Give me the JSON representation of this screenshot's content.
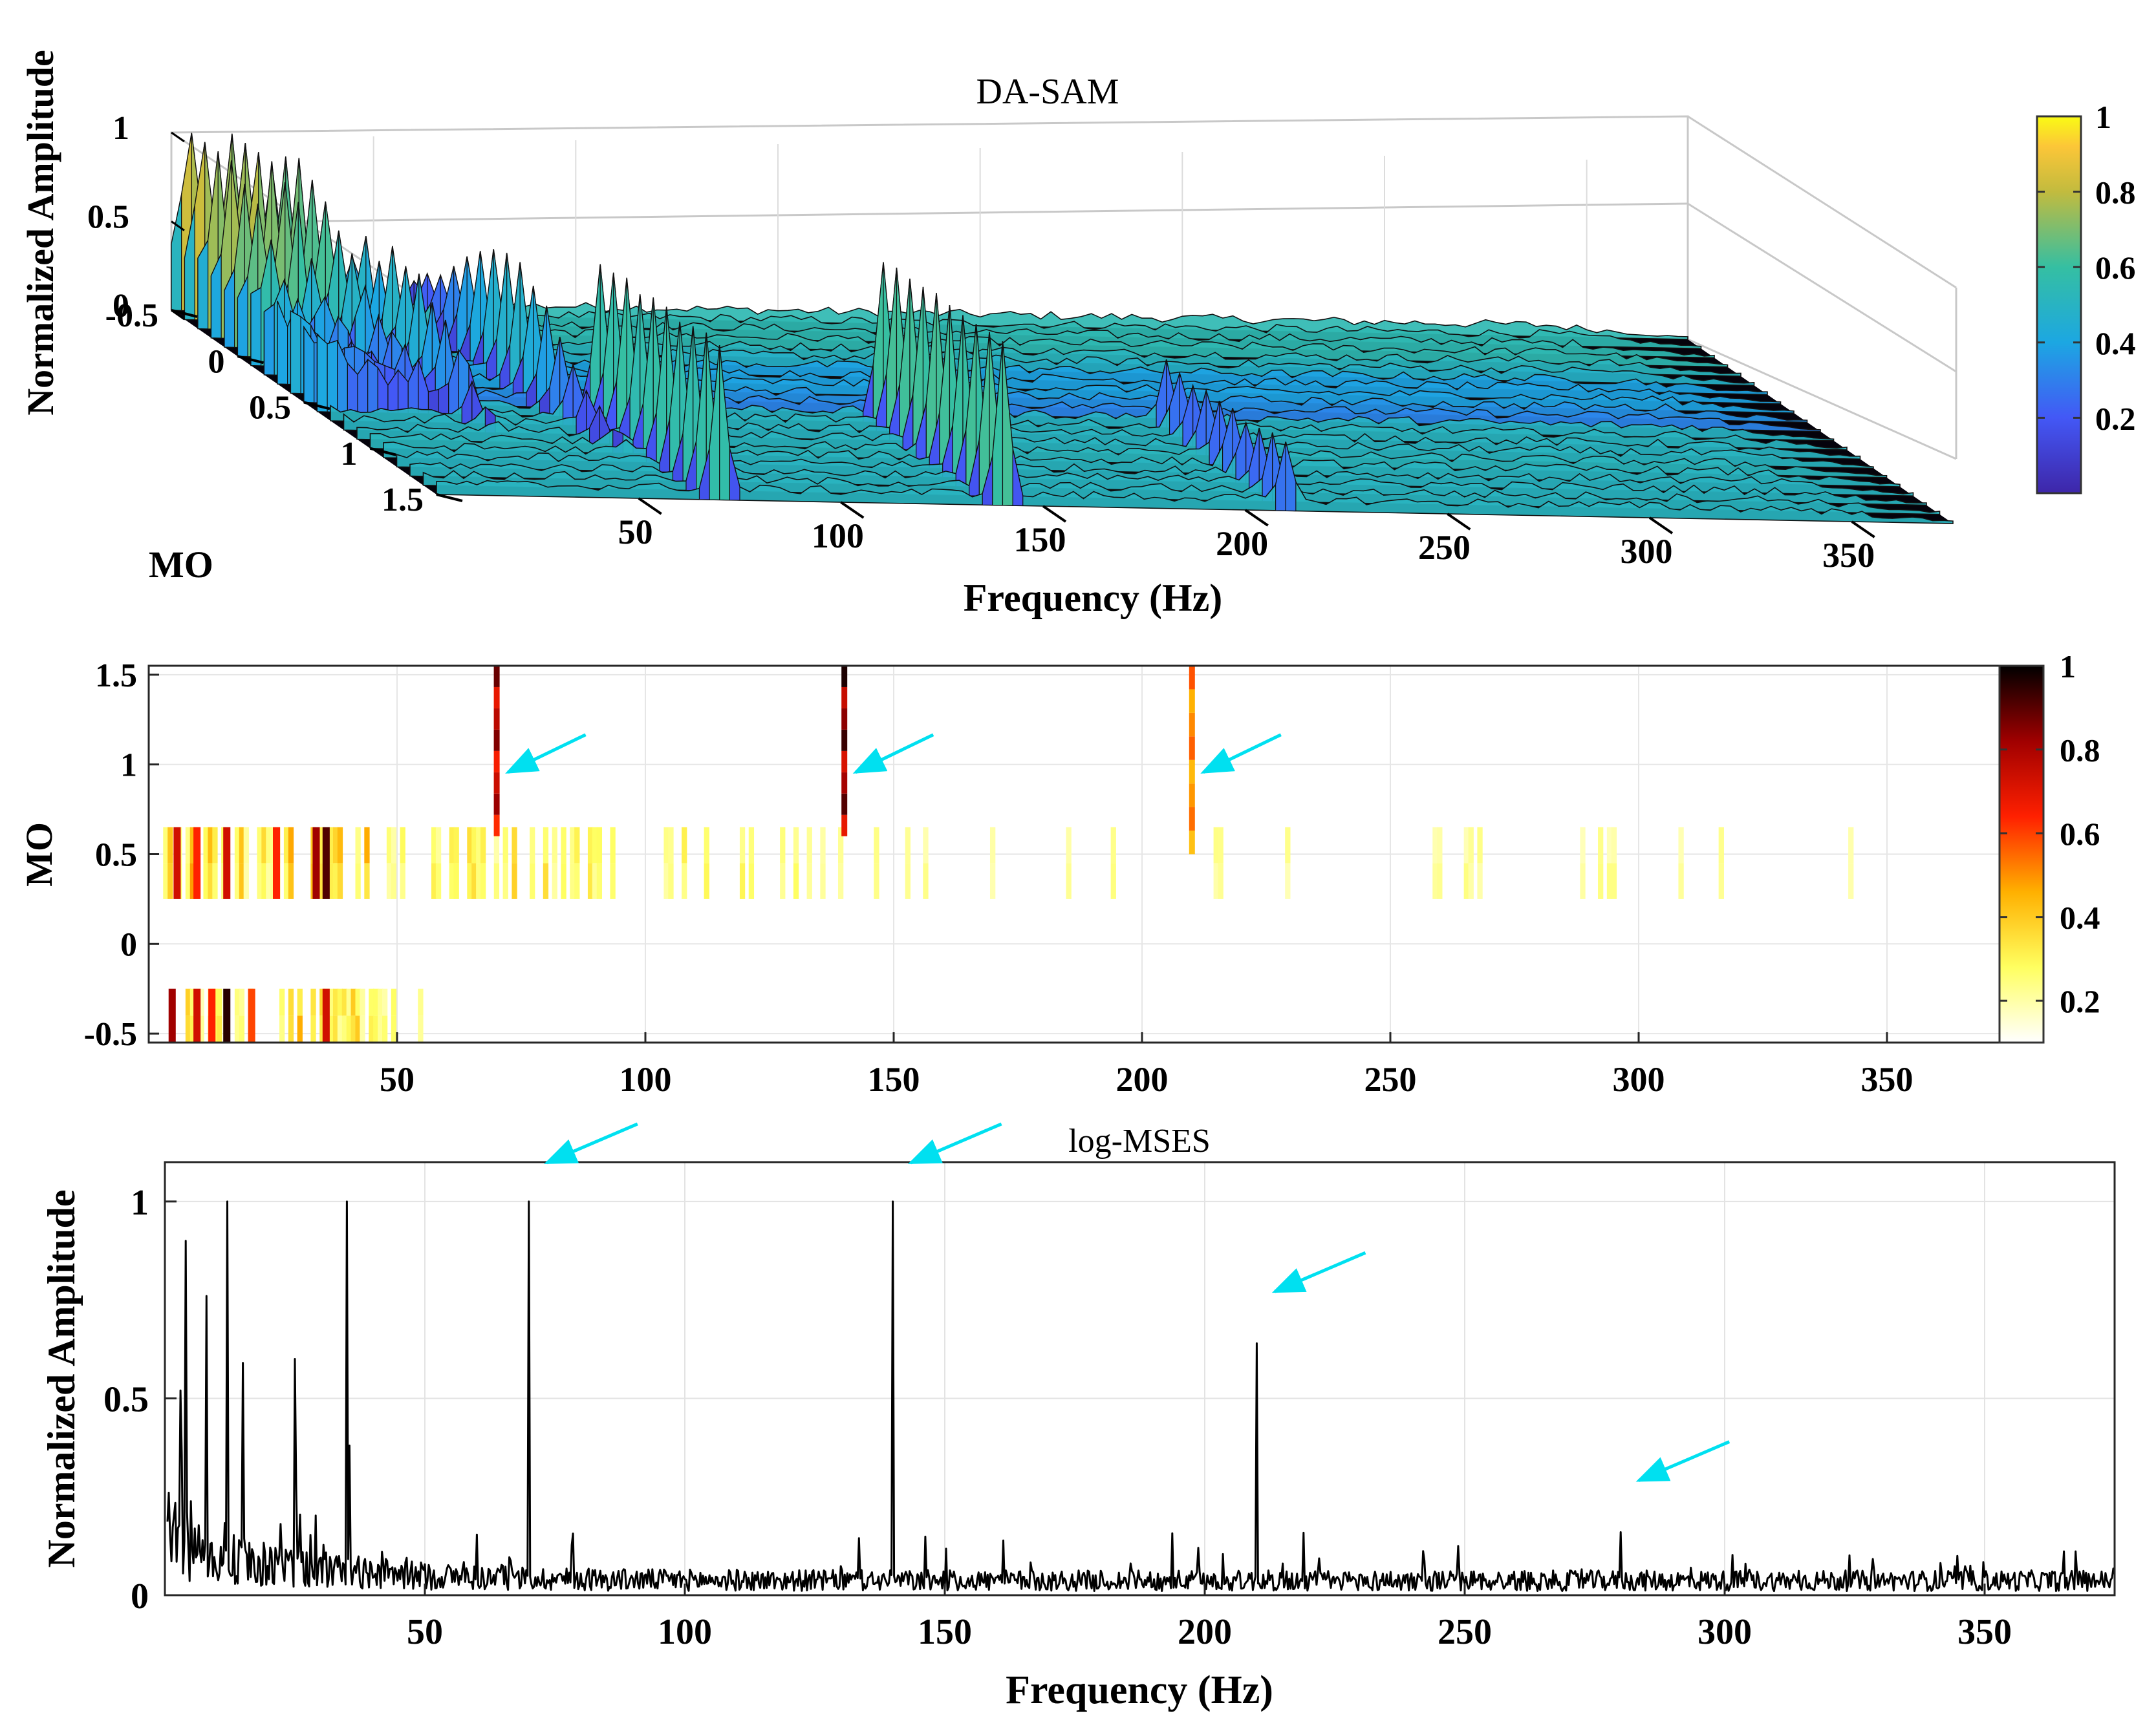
{
  "chart_data": [
    {
      "type": "surface",
      "title": "DA-SAM",
      "xlabel": "Frequency (Hz)",
      "ylabel": "MO",
      "zlabel": "Normalized Amplitude",
      "xlim": [
        0,
        375
      ],
      "ylim": [
        -0.5,
        1.5
      ],
      "zlim": [
        0,
        1
      ],
      "x_ticks": [
        "50",
        "100",
        "150",
        "200",
        "250",
        "300",
        "350"
      ],
      "y_ticks": [
        "-0.5",
        "0",
        "0.5",
        "1",
        "1.5"
      ],
      "z_ticks": [
        "0",
        "0.5",
        "1"
      ],
      "colorbar": {
        "colormap": "parula",
        "range": [
          0,
          1
        ],
        "ticks": [
          "0.2",
          "0.4",
          "0.6",
          "0.8",
          "1"
        ]
      },
      "peaks": [
        {
          "freq": 5,
          "mo": -0.4,
          "amp": 0.85
        },
        {
          "freq": 15,
          "mo": -0.4,
          "amp": 1.0
        },
        {
          "freq": 25,
          "mo": -0.3,
          "amp": 0.75
        },
        {
          "freq": 35,
          "mo": 0.1,
          "amp": 0.5
        },
        {
          "freq": 60,
          "mo": 0.2,
          "amp": 0.65
        },
        {
          "freq": 70,
          "mo": 1.0,
          "amp": 0.8
        },
        {
          "freq": 140,
          "mo": 1.0,
          "amp": 0.85
        },
        {
          "freq": 210,
          "mo": 1.0,
          "amp": 0.3
        }
      ],
      "grid": true
    },
    {
      "type": "heatmap",
      "xlabel": "",
      "ylabel": "MO",
      "xlim": [
        0,
        375
      ],
      "ylim": [
        -0.55,
        1.55
      ],
      "x_ticks": [
        "50",
        "100",
        "150",
        "200",
        "250",
        "300",
        "350"
      ],
      "y_ticks": [
        "-0.5",
        "0",
        "0.5",
        "1",
        "1.5"
      ],
      "colorbar": {
        "colormap": "hot-reversed",
        "range": [
          0.1,
          1
        ],
        "ticks": [
          "0.2",
          "0.4",
          "0.6",
          "0.8",
          "1"
        ]
      },
      "lines": [
        {
          "freq": 70,
          "mo_from": 0.6,
          "mo_to": 1.55,
          "value": 0.9
        },
        {
          "freq": 140,
          "mo_from": 0.6,
          "mo_to": 1.55,
          "value": 1.0
        },
        {
          "freq": 210,
          "mo_from": 0.5,
          "mo_to": 1.55,
          "value": 0.55
        }
      ],
      "bands": [
        {
          "mo_from": 0.25,
          "mo_to": 0.65
        },
        {
          "mo_from": -0.55,
          "mo_to": -0.25
        }
      ],
      "strong_cells": [
        {
          "freq": 5,
          "mo": 0.45,
          "value": 0.7
        },
        {
          "freq": 9,
          "mo": 0.45,
          "value": 0.6
        },
        {
          "freq": 15,
          "mo": 0.45,
          "value": 0.7
        },
        {
          "freq": 25,
          "mo": 0.45,
          "value": 0.6
        },
        {
          "freq": 33,
          "mo": 0.45,
          "value": 0.8
        },
        {
          "freq": 35,
          "mo": 0.45,
          "value": 0.9
        },
        {
          "freq": 4,
          "mo": -0.4,
          "value": 0.8
        },
        {
          "freq": 9,
          "mo": -0.4,
          "value": 0.7
        },
        {
          "freq": 12,
          "mo": -0.4,
          "value": 0.6
        },
        {
          "freq": 15,
          "mo": -0.4,
          "value": 0.95
        },
        {
          "freq": 20,
          "mo": -0.4,
          "value": 0.55
        },
        {
          "freq": 35,
          "mo": -0.4,
          "value": 0.7
        }
      ],
      "arrows_at_freq": [
        70,
        140,
        210
      ]
    },
    {
      "type": "line",
      "title": "log-MSES",
      "xlabel": "Frequency (Hz)",
      "ylabel": "Normalized Amplitude",
      "xlim": [
        0,
        375
      ],
      "ylim": [
        0,
        1.1
      ],
      "x_ticks": [
        "50",
        "100",
        "150",
        "200",
        "250",
        "300",
        "350"
      ],
      "y_ticks": [
        "0",
        "0.5",
        "1"
      ],
      "grid": true,
      "peaks": [
        {
          "freq": 3,
          "amp": 0.52
        },
        {
          "freq": 4,
          "amp": 0.9
        },
        {
          "freq": 8,
          "amp": 0.76
        },
        {
          "freq": 12,
          "amp": 1.0
        },
        {
          "freq": 15,
          "amp": 0.59
        },
        {
          "freq": 25,
          "amp": 0.6
        },
        {
          "freq": 35,
          "amp": 1.0
        },
        {
          "freq": 35.5,
          "amp": 0.38
        },
        {
          "freq": 70,
          "amp": 1.0
        },
        {
          "freq": 140,
          "amp": 1.0
        },
        {
          "freq": 210,
          "amp": 0.64
        },
        {
          "freq": 280,
          "amp": 0.16
        }
      ],
      "arrows_at_freq": [
        70,
        140,
        210,
        280
      ]
    }
  ]
}
